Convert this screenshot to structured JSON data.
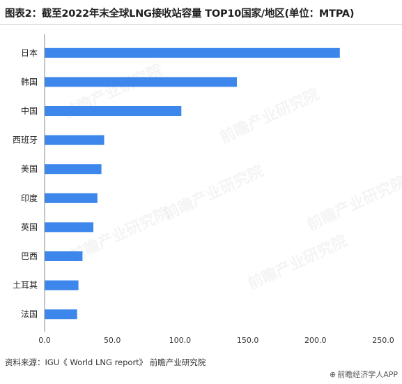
{
  "page": {
    "title": "图表2：截至2022年末全球LNG接收站容量 TOP10国家/地区(单位：MTPA)",
    "source": "资料来源：IGU《 World LNG report》 前瞻产业研究院",
    "app_watermark": "前瞻经济学人APP",
    "app_watermark_icon": "logo-icon",
    "brand_watermark": "前瞻产业研究院"
  },
  "chart_data": {
    "type": "bar",
    "orientation": "horizontal",
    "title": "图表2：截至2022年末全球LNG接收站容量 TOP10国家/地区(单位：MTPA)",
    "categories": [
      "日本",
      "韩国",
      "中国",
      "西班牙",
      "美国",
      "印度",
      "英国",
      "巴西",
      "土耳其",
      "法国"
    ],
    "values": [
      218,
      142,
      101,
      44,
      42,
      39,
      36,
      28,
      25,
      24
    ],
    "xlim": [
      0,
      250
    ],
    "xticks": [
      "0.0",
      "50.0",
      "100.0",
      "150.0",
      "200.0",
      "250.0"
    ],
    "bar_color": "#3d86eb",
    "grid": false,
    "legend": "none"
  }
}
